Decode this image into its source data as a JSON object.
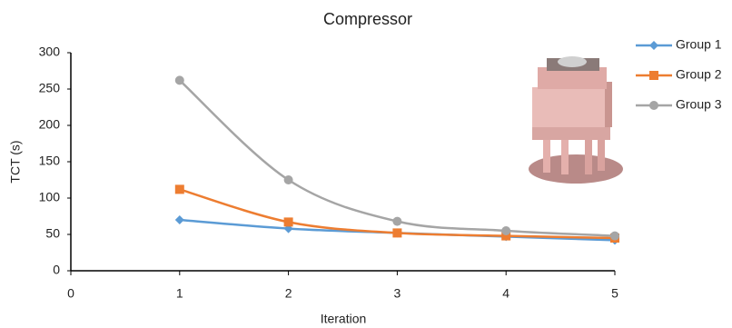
{
  "chart_data": {
    "type": "line",
    "title": "Compressor",
    "x_label": "Iteration",
    "y_label": "TCT (s)",
    "x": [
      1,
      2,
      3,
      4,
      5
    ],
    "series": [
      {
        "name": "Group 1",
        "color": "#5b9bd5",
        "marker": "diamond",
        "values": [
          70,
          58,
          52,
          47,
          42
        ]
      },
      {
        "name": "Group 2",
        "color": "#ed7d31",
        "marker": "square",
        "values": [
          112,
          67,
          52,
          48,
          45
        ]
      },
      {
        "name": "Group 3",
        "color": "#a5a5a5",
        "marker": "circle",
        "values": [
          262,
          125,
          68,
          55,
          48
        ]
      }
    ],
    "xlim": [
      0,
      5
    ],
    "xticks": [
      0,
      1,
      2,
      3,
      4,
      5
    ],
    "ylim": [
      0,
      300
    ],
    "yticks": [
      0,
      50,
      100,
      150,
      200,
      250,
      300
    ],
    "smooth": true,
    "grid": false,
    "legend": "right"
  }
}
